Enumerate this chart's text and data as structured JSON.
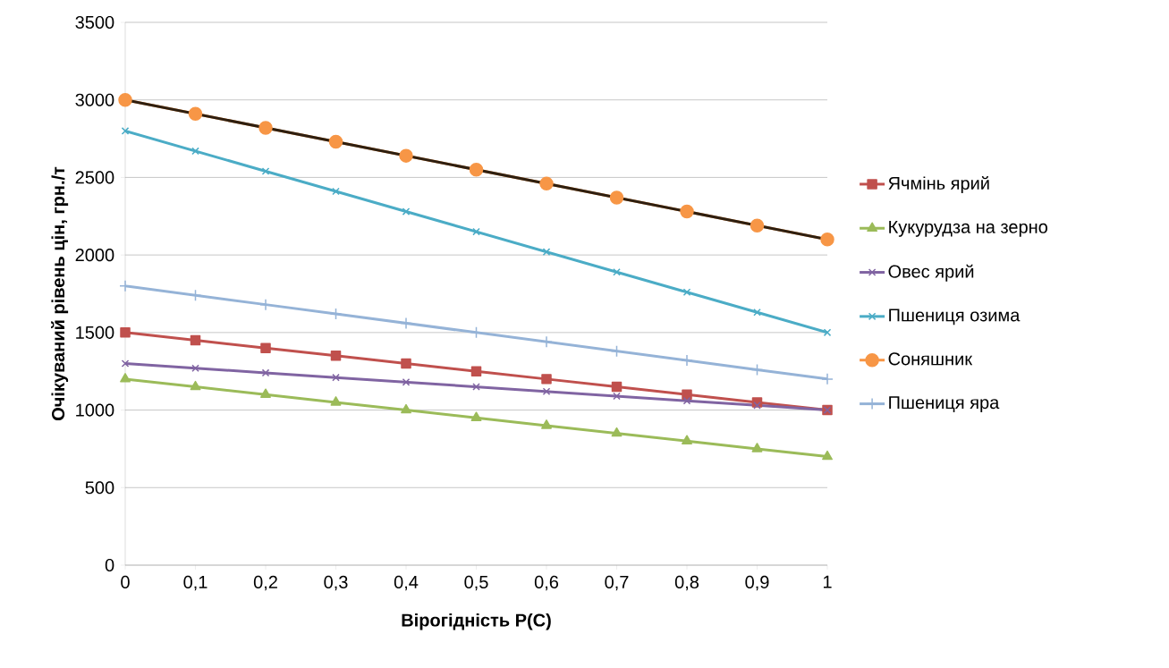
{
  "chart_data": {
    "type": "line",
    "xlabel": "Вірогідність P(C)",
    "ylabel": "Очікуваний рівень цін, грн./т",
    "x": [
      0,
      0.1,
      0.2,
      0.3,
      0.4,
      0.5,
      0.6,
      0.7,
      0.8,
      0.9,
      1
    ],
    "xlim": [
      0,
      1
    ],
    "ylim": [
      0,
      3500
    ],
    "xticks": [
      0,
      {
        "value": 0.1,
        "label": "0,1"
      },
      {
        "value": 0.2,
        "label": "0,2"
      },
      {
        "value": 0.3,
        "label": "0,3"
      },
      {
        "value": 0.4,
        "label": "0,4"
      },
      {
        "value": 0.5,
        "label": "0,5"
      },
      {
        "value": 0.6,
        "label": "0,6"
      },
      {
        "value": 0.7,
        "label": "0,7"
      },
      {
        "value": 0.8,
        "label": "0,8"
      },
      {
        "value": 0.9,
        "label": "0,9"
      },
      1
    ],
    "yticks": [
      0,
      500,
      1000,
      1500,
      2000,
      2500,
      3000,
      3500
    ],
    "grid": "y",
    "legend": "right",
    "line_style": "solid",
    "series": [
      {
        "name": "Ячмінь ярий",
        "color": "#c0504d",
        "marker": "square",
        "values": [
          1500,
          1450,
          1400,
          1350,
          1300,
          1250,
          1200,
          1150,
          1100,
          1050,
          1000
        ]
      },
      {
        "name": "Кукурудза на зерно",
        "color": "#9bbb59",
        "marker": "triangle",
        "values": [
          1200,
          1150,
          1100,
          1050,
          1000,
          950,
          900,
          850,
          800,
          750,
          700
        ]
      },
      {
        "name": "Овес ярий",
        "color": "#8064a2",
        "marker": "cross",
        "values": [
          1300,
          1270,
          1240,
          1210,
          1180,
          1150,
          1120,
          1090,
          1060,
          1030,
          1000
        ]
      },
      {
        "name": "Пшениця озима",
        "color": "#4bacc6",
        "marker": "cross",
        "values": [
          2800,
          2670,
          2540,
          2410,
          2280,
          2150,
          2020,
          1890,
          1760,
          1630,
          1500
        ]
      },
      {
        "name": "Соняшник",
        "color": "#f79646",
        "marker": "circle",
        "values": [
          3000,
          2910,
          2820,
          2730,
          2640,
          2550,
          2460,
          2370,
          2280,
          2190,
          2100
        ]
      },
      {
        "name": "Пшениця яра",
        "color": "#95b3d7",
        "marker": "plus",
        "values": [
          1800,
          1740,
          1680,
          1620,
          1560,
          1500,
          1440,
          1380,
          1320,
          1260,
          1200
        ]
      },
      {
        "type": "line",
        "color": "#2e1f10",
        "marker": "none",
        "x": [
          0,
          1
        ],
        "values": [
          3000,
          2100
        ]
      }
    ]
  }
}
